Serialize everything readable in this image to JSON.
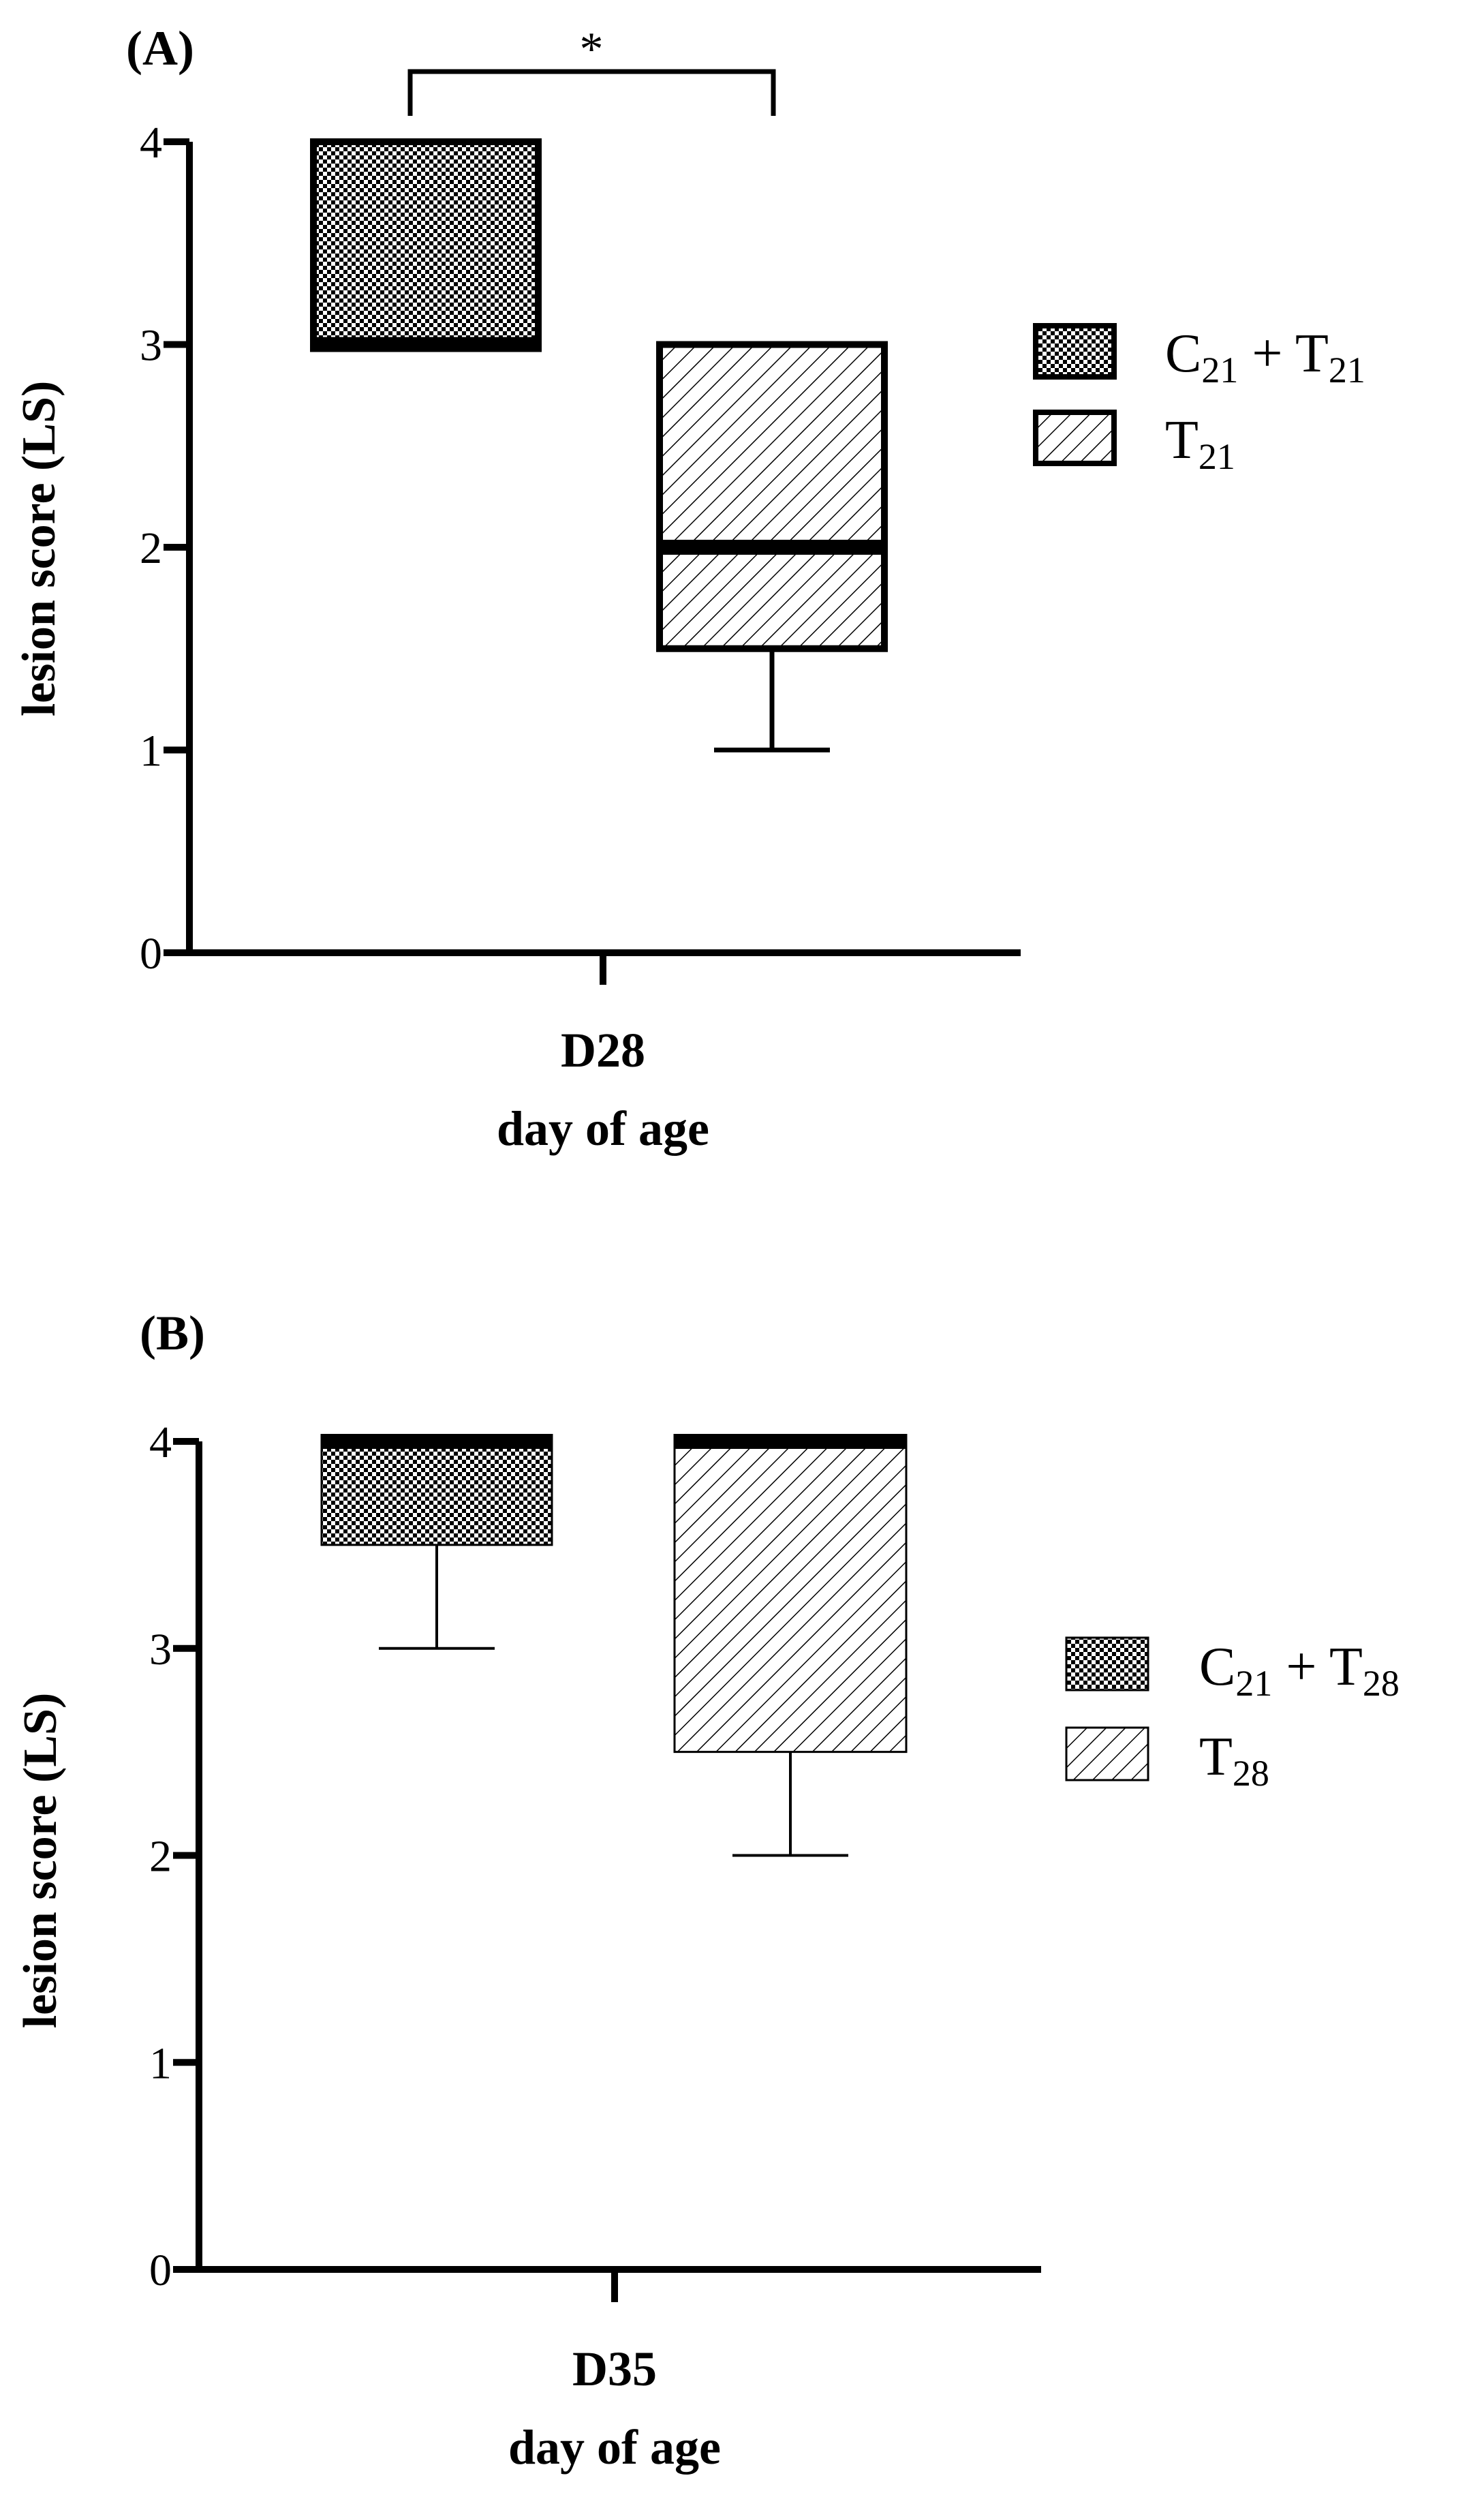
{
  "figure": {
    "colors": {
      "ink": "#000000",
      "paper": "#ffffff"
    }
  },
  "chart_data": [
    {
      "type": "box",
      "panel_label": "(A)",
      "ylabel": "lesion score (LS)",
      "xtick_label": "D28",
      "xlabel": "day of age",
      "ylim": [
        0,
        4
      ],
      "yticks": [
        "0",
        "1",
        "2",
        "3",
        "4"
      ],
      "significance": "*",
      "series": [
        {
          "name": "C21 + T21",
          "legend_main": "C",
          "legend_sub": "21",
          "legend_plus": " + T",
          "legend_sub2": "21",
          "pattern": "checker",
          "min": 3,
          "q1": 3,
          "median": 3,
          "q3": 4,
          "max": 4
        },
        {
          "name": "T21",
          "legend_main": "T",
          "legend_sub": "21",
          "pattern": "hatch",
          "min": 1,
          "q1": 1.5,
          "median": 2,
          "q3": 3,
          "max": 3
        }
      ]
    },
    {
      "type": "box",
      "panel_label": "(B)",
      "ylabel": "lesion score (LS)",
      "xtick_label": "D35",
      "xlabel": "day of age",
      "ylim": [
        0,
        4
      ],
      "yticks": [
        "0",
        "1",
        "2",
        "3",
        "4"
      ],
      "series": [
        {
          "name": "C21 + T28",
          "legend_main": "C",
          "legend_sub": "21",
          "legend_plus": " + T",
          "legend_sub2": "28",
          "pattern": "checker",
          "min": 3,
          "q1": 3.5,
          "median": 4,
          "q3": 4,
          "max": 4
        },
        {
          "name": "T28",
          "legend_main": "T",
          "legend_sub": "28",
          "pattern": "hatch",
          "min": 2,
          "q1": 2.5,
          "median": 4,
          "q3": 4,
          "max": 4
        }
      ]
    }
  ]
}
